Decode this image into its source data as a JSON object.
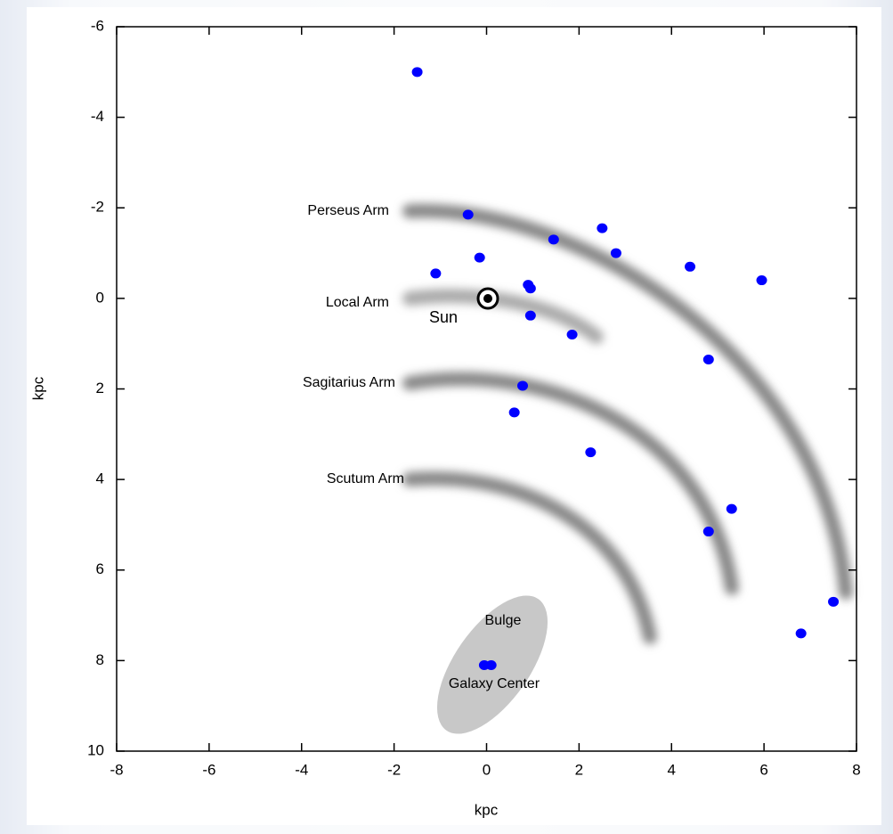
{
  "chart_data": {
    "type": "scatter",
    "x_label": "kpc",
    "y_label": "kpc",
    "xlim": [
      -8,
      8
    ],
    "xticks": [
      -8,
      -6,
      -4,
      -2,
      0,
      2,
      4,
      6,
      8
    ],
    "ylim": [
      -6,
      10
    ],
    "yticks": [
      -6,
      -4,
      -2,
      0,
      2,
      4,
      6,
      8,
      10
    ],
    "y_reversed": true,
    "color": "#0000ff",
    "annotations": [
      "Perseus Arm",
      "Local Arm",
      "Sun",
      "Sagitarius Arm",
      "Scutum Arm",
      "Bulge",
      "Galaxy Center"
    ],
    "x": [
      -1.5,
      -0.4,
      2.5,
      1.45,
      2.8,
      -0.15,
      4.4,
      -1.1,
      5.95,
      0.9,
      0.95,
      0.95,
      1.85,
      4.8,
      0.78,
      0.6,
      2.25,
      5.3,
      4.8,
      7.5,
      6.8,
      -0.05,
      0.1
    ],
    "y": [
      -5.0,
      -1.85,
      -1.55,
      -1.3,
      -1.0,
      -0.9,
      -0.7,
      -0.55,
      -0.4,
      -0.3,
      -0.22,
      0.38,
      0.8,
      1.35,
      1.93,
      2.52,
      3.4,
      4.65,
      5.15,
      6.7,
      7.4,
      8.1,
      8.1
    ]
  }
}
